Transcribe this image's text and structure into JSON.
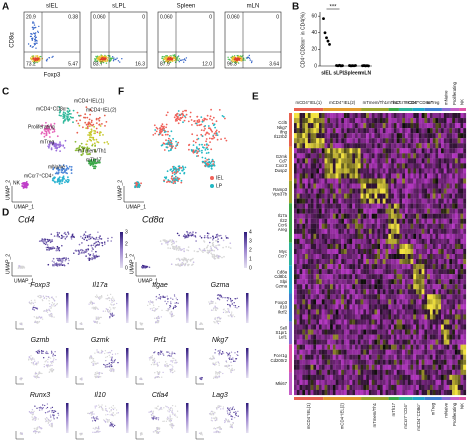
{
  "panels": {
    "A": {
      "label": "A",
      "y_axis": "CD8α",
      "x_axis": "Foxp3",
      "plots": [
        {
          "title": "sIEL",
          "quadrants": [
            "20.9",
            "0.38",
            "73.2",
            "5.47"
          ]
        },
        {
          "title": "sLPL",
          "quadrants": [
            "0.060",
            "0",
            "83.7",
            "16.3"
          ]
        },
        {
          "title": "Spleen",
          "quadrants": [
            "0.060",
            "0",
            "87.9",
            "12.0"
          ]
        },
        {
          "title": "mLN",
          "quadrants": [
            "0.060",
            "0",
            "96.3",
            "3.64"
          ]
        }
      ]
    },
    "B": {
      "label": "B",
      "y_axis": "CD4⁺CD8αα⁺ in CD4(%)",
      "categories": [
        "sIEL",
        "sLPL",
        "Spleen",
        "mLN"
      ],
      "values": [
        [
          57,
          40,
          34,
          30,
          26
        ],
        [
          0.6,
          0.3,
          0.8,
          0.2,
          0.4
        ],
        [
          0.5,
          0.2,
          0.4,
          0.3,
          0.6
        ],
        [
          0.3,
          0.5,
          0.2,
          0.4,
          0.1
        ]
      ],
      "ylim": [
        0,
        65
      ],
      "yticks": [
        0,
        20,
        40,
        60
      ],
      "significance": "***",
      "color": "#000000"
    },
    "C": {
      "label": "C",
      "x_axis": "UMAP_1",
      "y_axis": "UMAP_2",
      "clusters": [
        {
          "name": "mCD4⁺IEL(1)",
          "color": "#e8614f"
        },
        {
          "name": "mCD4⁺IEL(2)",
          "color": "#c7c92e"
        },
        {
          "name": "mCD4⁺CD8α⁺",
          "color": "#2fb89a"
        },
        {
          "name": "Proliferating",
          "color": "#e563b8"
        },
        {
          "name": "mTreg",
          "color": "#9a6fdc"
        },
        {
          "name": "mTmem/Th1",
          "color": "#8dbb3a"
        },
        {
          "name": "mTh17",
          "color": "#3aa848"
        },
        {
          "name": "mNaive",
          "color": "#4d86d8"
        },
        {
          "name": "mCcr7⁺CD4⁺",
          "color": "#2bb3d1"
        },
        {
          "name": "NK",
          "color": "#c040c9"
        }
      ]
    },
    "F": {
      "label": "F",
      "x_axis": "UMAP_1",
      "y_axis": "UMAP_2",
      "groups": [
        {
          "name": "IEL",
          "color": "#f0625a"
        },
        {
          "name": "LP",
          "color": "#22b8c4"
        }
      ]
    },
    "D": {
      "label": "D",
      "x_axis": "UMAP_1",
      "y_axis": "UMAP_2",
      "main": [
        {
          "gene": "Cd4",
          "colorbar_ticks": [
            0,
            1,
            2,
            3
          ]
        },
        {
          "gene": "Cd8α",
          "colorbar_ticks": [
            0,
            1,
            2,
            3,
            4
          ]
        }
      ],
      "genes": [
        "Foxp3",
        "Il17a",
        "Itgae",
        "Gzma",
        "Gzmb",
        "Gzmk",
        "Prf1",
        "Nkg7",
        "Runx3",
        "Il10",
        "Ctla4",
        "Lag3"
      ]
    },
    "E": {
      "label": "E",
      "clusters": [
        {
          "name": "mCD4⁺IEL(1)",
          "color": "#e8614f"
        },
        {
          "name": "mCD4⁺IEL(2)",
          "color": "#e39a2d"
        },
        {
          "name": "mTmem/Th1",
          "color": "#9ea52c"
        },
        {
          "name": "mTh17",
          "color": "#3aa848"
        },
        {
          "name": "mCcr7⁺CD4⁺",
          "color": "#2bb39a"
        },
        {
          "name": "mCD4⁺CD8α⁺",
          "color": "#22a7c9",
          "text_color": "#e53935"
        },
        {
          "name": "mTreg",
          "color": "#3c7fd1"
        },
        {
          "name": "mNaive",
          "color": "#8a6fd6"
        },
        {
          "name": "Proliferating",
          "color": "#c55ec8"
        },
        {
          "name": "NK",
          "color": "#e056a8"
        }
      ],
      "gene_groups": [
        {
          "genes": [
            "Ccl5",
            "Nkg7",
            "Ifng",
            "Il12rb2"
          ]
        },
        {
          "genes": [
            "Gzmk",
            "Cd7",
            "Cxcr3",
            "Dusp2"
          ]
        },
        {
          "genes": [
            "Ramp3",
            "Vps37b"
          ]
        },
        {
          "genes": [
            "Il17a",
            "Il22",
            "Ccr6",
            "Areg"
          ]
        },
        {
          "genes": [
            "Myc",
            "Ccr7"
          ]
        },
        {
          "genes": [
            "Cd8a",
            "Cd8b1",
            "Slpi",
            "Gzma"
          ],
          "text_color": "#e53935"
        },
        {
          "genes": [
            "Foxp3",
            "Il10",
            "Ikzf2"
          ]
        },
        {
          "genes": [
            "Sell",
            "S1pr1",
            "Lef1"
          ]
        },
        {
          "genes": [
            "Fcer1g",
            "Cd200r2"
          ]
        },
        {
          "genes": [
            "Mki67"
          ]
        }
      ]
    }
  }
}
